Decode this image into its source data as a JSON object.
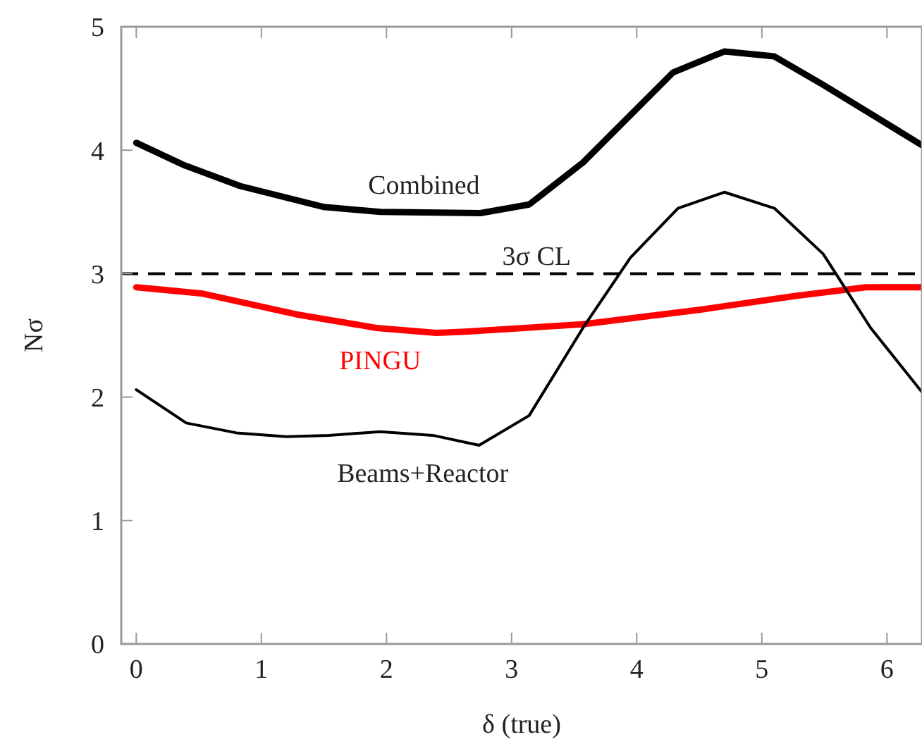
{
  "chart_data": {
    "type": "line",
    "xlabel": "δ (true)",
    "ylabel": "Nσ",
    "xlim": [
      -0.12,
      6.28
    ],
    "ylim": [
      0,
      5
    ],
    "xticks": [
      0,
      1,
      2,
      3,
      4,
      5,
      6
    ],
    "yticks": [
      0,
      1,
      2,
      3,
      4,
      5
    ],
    "grid": false,
    "marker": "none",
    "series": [
      {
        "name": "Combined",
        "color": "#000000",
        "x": [
          0,
          0.38,
          0.83,
          1.5,
          1.95,
          2.75,
          3.14,
          3.57,
          4.29,
          4.7,
          5.1,
          5.49,
          5.91,
          6.28
        ],
        "values": [
          4.06,
          3.88,
          3.71,
          3.54,
          3.5,
          3.49,
          3.56,
          3.9,
          4.63,
          4.8,
          4.76,
          4.53,
          4.27,
          4.04
        ]
      },
      {
        "name": "PINGU",
        "color": "#ff0000",
        "x": [
          0,
          0.52,
          1.28,
          1.92,
          2.4,
          2.63,
          3.57,
          4.52,
          5.27,
          5.83,
          6.28
        ],
        "values": [
          2.89,
          2.84,
          2.67,
          2.56,
          2.52,
          2.53,
          2.59,
          2.71,
          2.82,
          2.89,
          2.89
        ]
      },
      {
        "name": "Beams+Reactor",
        "color": "#000000",
        "x": [
          0,
          0.4,
          0.8,
          1.2,
          1.54,
          1.95,
          2.37,
          2.74,
          3.14,
          3.57,
          3.95,
          4.33,
          4.7,
          5.1,
          5.49,
          5.87,
          6.28
        ],
        "values": [
          2.06,
          1.79,
          1.71,
          1.68,
          1.69,
          1.72,
          1.69,
          1.61,
          1.85,
          2.56,
          3.13,
          3.53,
          3.66,
          3.53,
          3.16,
          2.56,
          2.04
        ]
      }
    ],
    "ref_lines": [
      {
        "axis": "y",
        "value": 3,
        "label": "3σ CL",
        "color": "#000000",
        "line_style": "dashed"
      }
    ]
  }
}
